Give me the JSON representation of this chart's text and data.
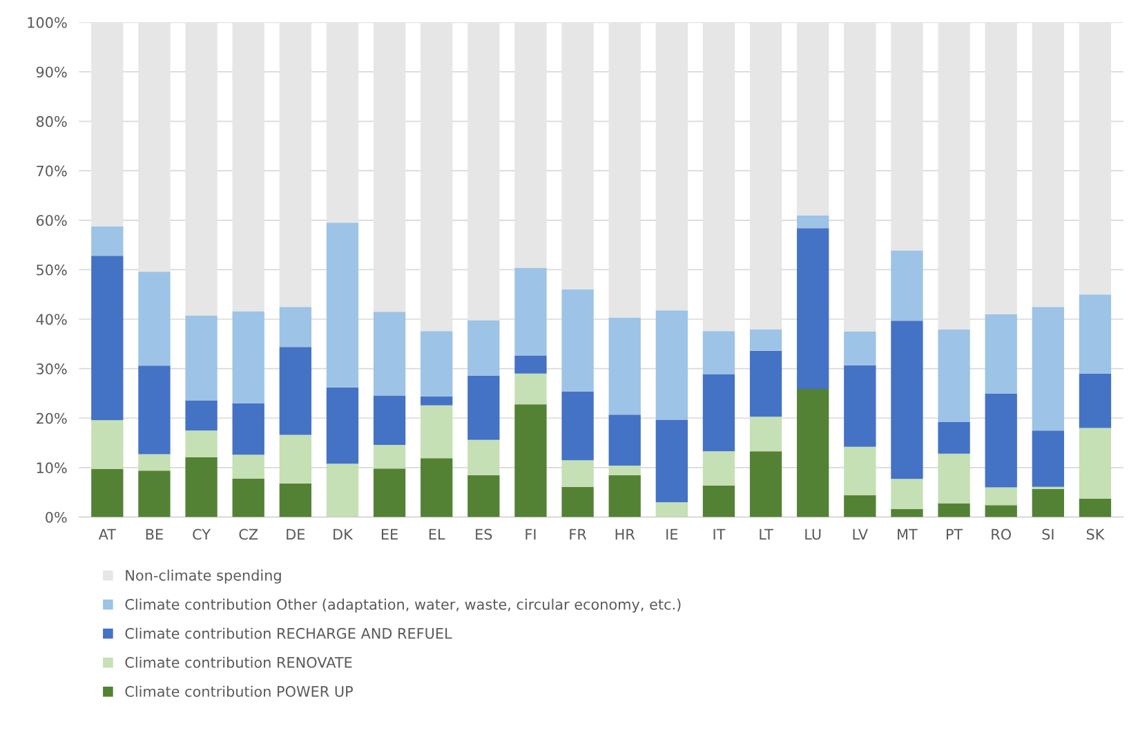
{
  "chart_data": {
    "type": "bar",
    "stacked": true,
    "grid": "y",
    "legend": "bottom",
    "categories": [
      "AT",
      "BE",
      "CY",
      "CZ",
      "DE",
      "DK",
      "EE",
      "EL",
      "ES",
      "FI",
      "FR",
      "HR",
      "IE",
      "IT",
      "LT",
      "LU",
      "LV",
      "MT",
      "PT",
      "RO",
      "SI",
      "SK"
    ],
    "ylim": [
      0,
      100
    ],
    "yticks": [
      {
        "value": 0,
        "label": "0%"
      },
      {
        "value": 10,
        "label": "10%"
      },
      {
        "value": 20,
        "label": "20%"
      },
      {
        "value": 30,
        "label": "30%"
      },
      {
        "value": 40,
        "label": "40%"
      },
      {
        "value": 50,
        "label": "50%"
      },
      {
        "value": 60,
        "label": "60%"
      },
      {
        "value": 70,
        "label": "70%"
      },
      {
        "value": 80,
        "label": "80%"
      },
      {
        "value": 90,
        "label": "90%"
      },
      {
        "value": 100,
        "label": "100%"
      }
    ],
    "series": [
      {
        "name": "Climate contribution POWER UP",
        "color": "#548235",
        "values": [
          9.7,
          9.4,
          12.1,
          7.8,
          6.8,
          0,
          9.8,
          11.9,
          8.5,
          22.8,
          6.1,
          8.5,
          0,
          6.4,
          13.3,
          25.9,
          4.4,
          1.6,
          2.8,
          2.4,
          5.7,
          3.7
        ]
      },
      {
        "name": "Climate contribution RENOVATE",
        "color": "#c5e0b4",
        "values": [
          9.9,
          3.3,
          5.4,
          4.8,
          9.8,
          10.8,
          4.8,
          10.7,
          7.1,
          6.2,
          5.4,
          1.9,
          3.0,
          6.9,
          7.0,
          0,
          9.8,
          6.1,
          10.0,
          3.6,
          0.4,
          14.3
        ]
      },
      {
        "name": "Climate contribution RECHARGE AND REFUEL",
        "color": "#4472c4",
        "values": [
          33.2,
          17.9,
          6.1,
          10.4,
          17.8,
          15.4,
          9.9,
          1.8,
          13.0,
          3.6,
          13.9,
          10.3,
          16.7,
          15.6,
          13.3,
          32.5,
          16.5,
          32.0,
          6.4,
          19.0,
          11.4,
          11.0
        ]
      },
      {
        "name": "Climate contribution Other (adaptation, water, waste, circular economy, etc.)",
        "color": "#9dc3e6",
        "values": [
          6.0,
          19.0,
          17.1,
          18.6,
          8.1,
          33.3,
          17.0,
          13.2,
          11.2,
          17.8,
          20.6,
          19.6,
          22.1,
          8.7,
          4.3,
          2.6,
          6.8,
          14.2,
          18.7,
          16.0,
          25.0,
          16.0
        ]
      },
      {
        "name": "Non-climate spending",
        "color": "#e6e6e6",
        "values": [
          41.2,
          50.4,
          59.3,
          58.4,
          57.5,
          40.5,
          58.5,
          62.4,
          60.2,
          49.6,
          54.0,
          59.7,
          58.2,
          62.4,
          62.1,
          39.0,
          62.5,
          46.1,
          62.1,
          59.0,
          57.5,
          55.0
        ]
      }
    ]
  }
}
